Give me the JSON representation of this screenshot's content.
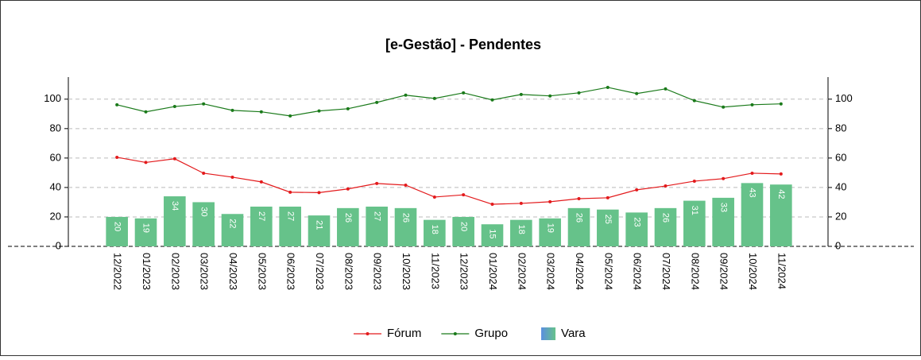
{
  "chart_data": {
    "type": "bar",
    "title": "[e-Gestão]  - Pendentes",
    "categories": [
      "12/2022",
      "01/2023",
      "02/2023",
      "03/2023",
      "04/2023",
      "05/2023",
      "06/2023",
      "07/2023",
      "08/2023",
      "09/2023",
      "10/2023",
      "11/2023",
      "12/2023",
      "01/2024",
      "02/2024",
      "03/2024",
      "04/2024",
      "05/2024",
      "06/2024",
      "07/2024",
      "08/2024",
      "09/2024",
      "10/2024",
      "11/2024"
    ],
    "series": [
      {
        "name": "Fórum",
        "type": "line",
        "color": "#e31a1c",
        "values": [
          60.5,
          57,
          59.5,
          49.7,
          47,
          43.8,
          36.8,
          36.5,
          39,
          42.7,
          41.6,
          33.5,
          35,
          28.6,
          29.2,
          30.3,
          32.4,
          33,
          38.4,
          41,
          44.3,
          46,
          49.7,
          49.2
        ]
      },
      {
        "name": "Grupo",
        "type": "line",
        "color": "#1a7a1a",
        "values": [
          96.2,
          91.4,
          95,
          96.8,
          92.4,
          91.4,
          88.6,
          92,
          93.5,
          97.8,
          102.7,
          100.5,
          104.3,
          99.5,
          103.2,
          102.2,
          104.3,
          108,
          103.8,
          107,
          99,
          94.6,
          96.2,
          96.8
        ]
      },
      {
        "name": "Vara",
        "type": "bar",
        "color": "#66c28a",
        "values": [
          20,
          19,
          34,
          30,
          22,
          27,
          27,
          21,
          26,
          27,
          26,
          18,
          20,
          15,
          18,
          19,
          26,
          25,
          23,
          26,
          31,
          33,
          43,
          42
        ]
      }
    ],
    "ylim": [
      0,
      115
    ],
    "yticks": [
      0,
      20,
      40,
      60,
      80,
      100
    ],
    "grid": true,
    "legend": "bottom"
  }
}
